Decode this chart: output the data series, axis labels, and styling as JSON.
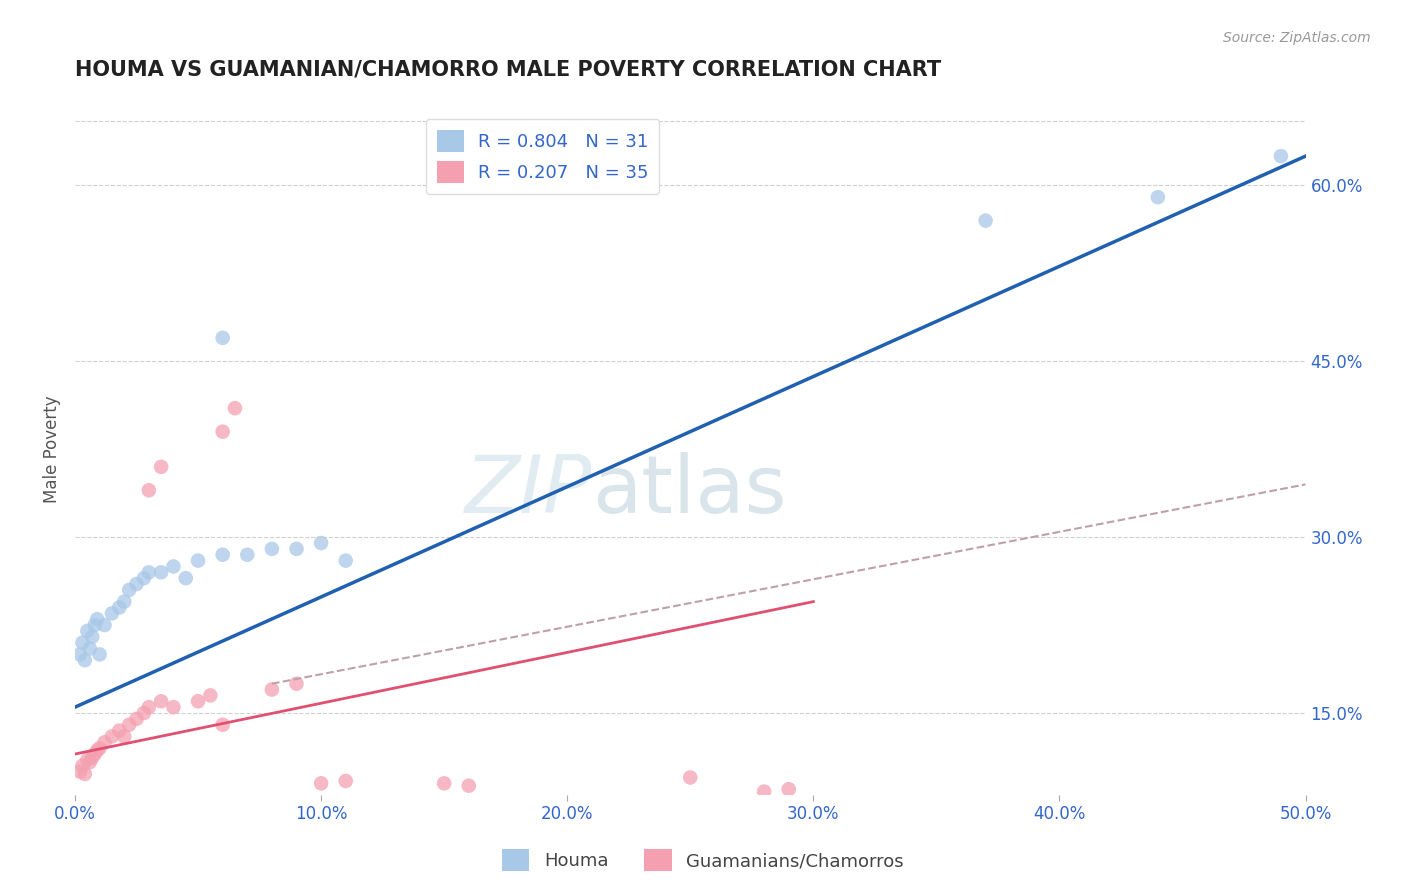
{
  "title": "HOUMA VS GUAMANIAN/CHAMORRO MALE POVERTY CORRELATION CHART",
  "source": "Source: ZipAtlas.com",
  "ylabel": "Male Poverty",
  "legend_label1": "Houma",
  "legend_label2": "Guamanians/Chamorros",
  "r1": 0.804,
  "n1": 31,
  "r2": 0.207,
  "n2": 35,
  "xlim": [
    0.0,
    0.5
  ],
  "ylim": [
    0.08,
    0.67
  ],
  "xticks": [
    0.0,
    0.1,
    0.2,
    0.3,
    0.4,
    0.5
  ],
  "yticks_right": [
    0.15,
    0.3,
    0.45,
    0.6
  ],
  "color_blue": "#a8c8e8",
  "color_pink": "#f4a0b0",
  "trendline_blue": "#2060b0",
  "trendline_pink": "#e05070",
  "trendline_gray_dashed": "#c0a0a8",
  "watermark_zip": "ZIP",
  "watermark_atlas": "atlas",
  "blue_scatter": [
    [
      0.002,
      0.2
    ],
    [
      0.003,
      0.21
    ],
    [
      0.004,
      0.195
    ],
    [
      0.005,
      0.22
    ],
    [
      0.006,
      0.205
    ],
    [
      0.007,
      0.215
    ],
    [
      0.008,
      0.225
    ],
    [
      0.009,
      0.23
    ],
    [
      0.01,
      0.2
    ],
    [
      0.012,
      0.225
    ],
    [
      0.015,
      0.235
    ],
    [
      0.018,
      0.24
    ],
    [
      0.02,
      0.245
    ],
    [
      0.022,
      0.255
    ],
    [
      0.025,
      0.26
    ],
    [
      0.028,
      0.265
    ],
    [
      0.03,
      0.27
    ],
    [
      0.035,
      0.27
    ],
    [
      0.04,
      0.275
    ],
    [
      0.045,
      0.265
    ],
    [
      0.05,
      0.28
    ],
    [
      0.06,
      0.285
    ],
    [
      0.07,
      0.285
    ],
    [
      0.08,
      0.29
    ],
    [
      0.09,
      0.29
    ],
    [
      0.1,
      0.295
    ],
    [
      0.11,
      0.28
    ],
    [
      0.06,
      0.47
    ],
    [
      0.37,
      0.57
    ],
    [
      0.44,
      0.59
    ],
    [
      0.49,
      0.625
    ]
  ],
  "pink_scatter": [
    [
      0.002,
      0.1
    ],
    [
      0.003,
      0.105
    ],
    [
      0.004,
      0.098
    ],
    [
      0.005,
      0.11
    ],
    [
      0.006,
      0.108
    ],
    [
      0.007,
      0.112
    ],
    [
      0.008,
      0.115
    ],
    [
      0.009,
      0.118
    ],
    [
      0.01,
      0.12
    ],
    [
      0.012,
      0.125
    ],
    [
      0.015,
      0.13
    ],
    [
      0.018,
      0.135
    ],
    [
      0.02,
      0.13
    ],
    [
      0.022,
      0.14
    ],
    [
      0.025,
      0.145
    ],
    [
      0.028,
      0.15
    ],
    [
      0.03,
      0.155
    ],
    [
      0.035,
      0.16
    ],
    [
      0.04,
      0.155
    ],
    [
      0.05,
      0.16
    ],
    [
      0.055,
      0.165
    ],
    [
      0.06,
      0.14
    ],
    [
      0.06,
      0.39
    ],
    [
      0.065,
      0.41
    ],
    [
      0.03,
      0.34
    ],
    [
      0.035,
      0.36
    ],
    [
      0.08,
      0.17
    ],
    [
      0.09,
      0.175
    ],
    [
      0.15,
      0.09
    ],
    [
      0.16,
      0.088
    ],
    [
      0.25,
      0.095
    ],
    [
      0.28,
      0.083
    ],
    [
      0.29,
      0.085
    ],
    [
      0.1,
      0.09
    ],
    [
      0.11,
      0.092
    ]
  ]
}
